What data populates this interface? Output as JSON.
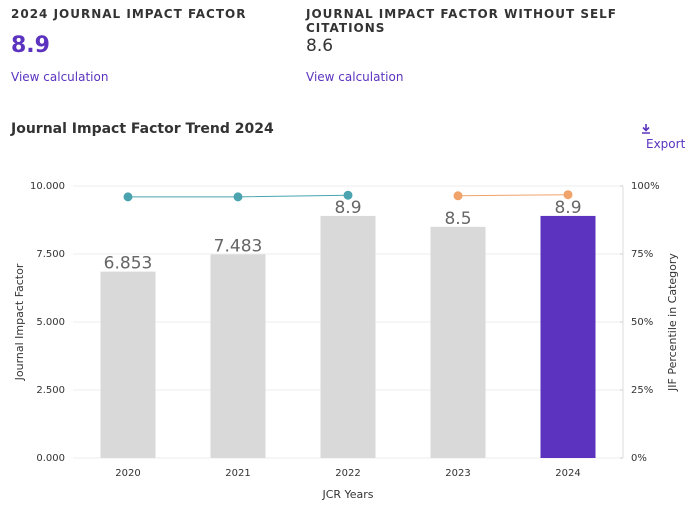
{
  "header": {
    "items": [
      {
        "label": "2024 JOURNAL IMPACT FACTOR",
        "value": "8.9",
        "link": "View calculation"
      },
      {
        "label": "JOURNAL IMPACT FACTOR WITHOUT SELF CITATIONS",
        "value": "8.6",
        "link": "View calculation"
      }
    ]
  },
  "export": "Export",
  "chart_data": {
    "type": "bar",
    "title": "Journal Impact Factor Trend 2024",
    "x_label": "JCR Years",
    "y_label": "Journal Impact Factor",
    "y2_label": "JIF Percentile in Category",
    "categories": [
      "2020",
      "2021",
      "2022",
      "2023",
      "2024"
    ],
    "values": [
      6.853,
      7.483,
      8.9,
      8.5,
      8.9
    ],
    "colors": [
      "#d9d9d9",
      "#d9d9d9",
      "#d9d9d9",
      "#d9d9d9",
      "#5b33bf"
    ],
    "series": [
      {
        "type": "line",
        "axis": "y2",
        "color": "#4aa3ae",
        "values": [
          96,
          96,
          96.6,
          null,
          null
        ]
      },
      {
        "type": "line",
        "axis": "y2",
        "color": "#f0a36a",
        "values": [
          null,
          null,
          null,
          96.4,
          96.8
        ]
      }
    ],
    "ylim": [
      0,
      10
    ],
    "yticks": [
      {
        "value": 0,
        "label": "0.000"
      },
      {
        "value": 2.5,
        "label": "2.500"
      },
      {
        "value": 5,
        "label": "5.000"
      },
      {
        "value": 7.5,
        "label": "7.500"
      },
      {
        "value": 10,
        "label": "10.000"
      }
    ],
    "y2lim": [
      0,
      100
    ],
    "y2ticks": [
      {
        "value": 0,
        "label": "0%"
      },
      {
        "value": 25,
        "label": "25%"
      },
      {
        "value": 50,
        "label": "50%"
      },
      {
        "value": 75,
        "label": "75%"
      },
      {
        "value": 100,
        "label": "100%"
      }
    ],
    "grid": true
  }
}
